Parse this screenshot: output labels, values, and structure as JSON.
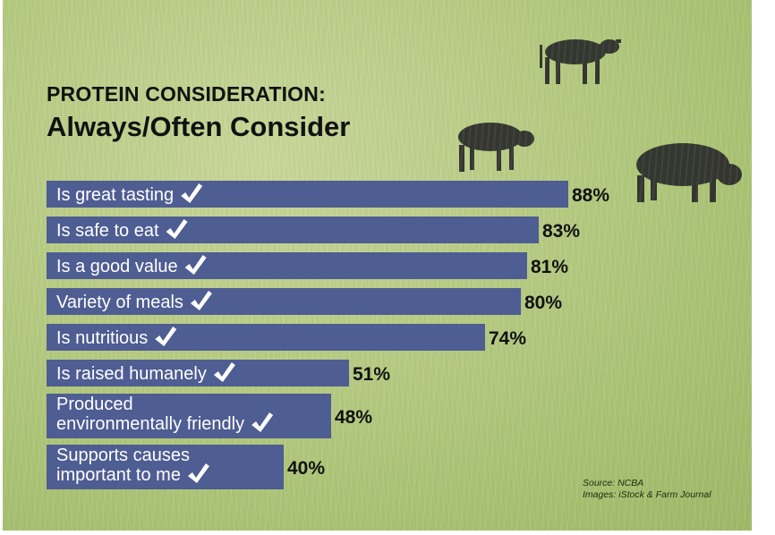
{
  "title": "PROTEIN CONSIDERATION:",
  "subtitle": "Always/Often Consider",
  "source_lines": [
    "Source: NCBA",
    "Images: iStock & Farm Journal"
  ],
  "colors": {
    "bar": "#4e5d92",
    "text_dark": "#111111",
    "background": "#b5ca82",
    "cow": "#2a2a2a"
  },
  "chart_data": {
    "type": "bar",
    "orientation": "horizontal",
    "title": "PROTEIN CONSIDERATION:",
    "subtitle": "Always/Often Consider",
    "categories": [
      [
        "Is great tasting"
      ],
      [
        "Is safe to eat"
      ],
      [
        "Is a good value"
      ],
      [
        "Variety of meals"
      ],
      [
        "Is nutritious"
      ],
      [
        "Is raised humanely"
      ],
      [
        "Produced",
        "environmentally friendly"
      ],
      [
        "Supports causes",
        "important to me"
      ]
    ],
    "values": [
      88,
      83,
      81,
      80,
      74,
      51,
      48,
      40
    ],
    "value_labels": [
      "88%",
      "83%",
      "81%",
      "80%",
      "74%",
      "51%",
      "48%",
      "40%"
    ],
    "unit": "%",
    "xlim": [
      0,
      100
    ],
    "grid": false,
    "legend": "none"
  }
}
